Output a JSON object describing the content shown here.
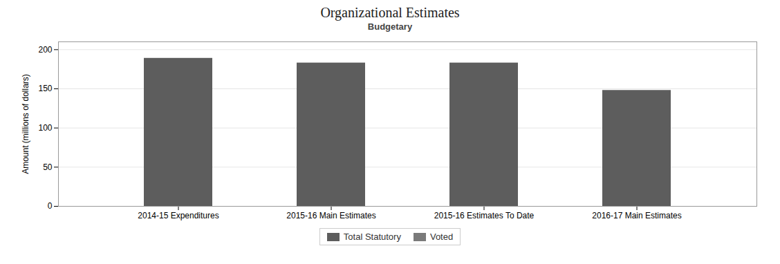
{
  "chart_data": {
    "type": "bar",
    "title": "Organizational Estimates",
    "subtitle": "Budgetary",
    "categories": [
      "2014-15 Expenditures",
      "2015-16 Main Estimates",
      "2015-16 Estimates To Date",
      "2016-17 Main Estimates"
    ],
    "series": [
      {
        "name": "Total Statutory",
        "color": "#5d5d5d",
        "values": [
          189,
          183,
          183,
          148
        ]
      },
      {
        "name": "Voted",
        "color": "#7a7a7a",
        "values": [
          null,
          null,
          null,
          null
        ]
      }
    ],
    "ylabel": "Amount (millions of dollars)",
    "ylim": [
      0,
      210
    ],
    "yticks": [
      0,
      50,
      100,
      150,
      200
    ],
    "grid": true,
    "legend": "bottom"
  }
}
